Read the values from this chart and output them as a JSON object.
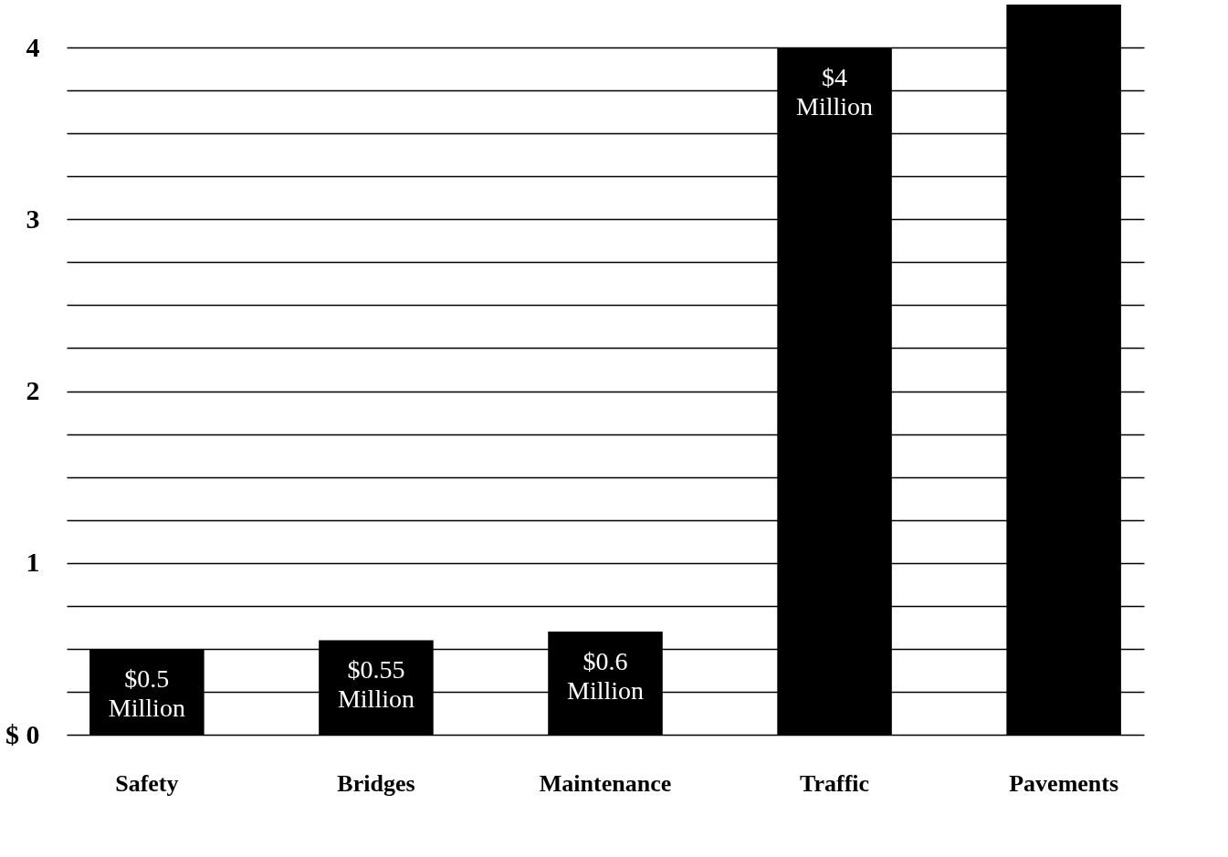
{
  "chart_data": {
    "type": "bar",
    "categories": [
      "Safety",
      "Bridges",
      "Maintenance",
      "Traffic",
      "Pavements"
    ],
    "values": [
      0.5,
      0.55,
      0.6,
      4,
      4.25
    ],
    "color": "#000000",
    "value_labels": [
      "$0.5\nMillion",
      "$0.55\nMillion",
      "$0.6\nMillion",
      "$4\nMillion",
      null
    ],
    "ylim": [
      0,
      4.25
    ],
    "yticks": [
      {
        "value": 0,
        "label": "$ 0"
      },
      {
        "value": 0.25,
        "label": null
      },
      {
        "value": 0.5,
        "label": null
      },
      {
        "value": 0.75,
        "label": null
      },
      1,
      {
        "value": 1.25,
        "label": null
      },
      {
        "value": 1.5,
        "label": null
      },
      {
        "value": 1.75,
        "label": null
      },
      2,
      {
        "value": 2.25,
        "label": null
      },
      {
        "value": 2.5,
        "label": null
      },
      {
        "value": 2.75,
        "label": null
      },
      3,
      {
        "value": 3.25,
        "label": null
      },
      {
        "value": 3.5,
        "label": null
      },
      {
        "value": 3.75,
        "label": null
      },
      4
    ],
    "grid": true
  }
}
